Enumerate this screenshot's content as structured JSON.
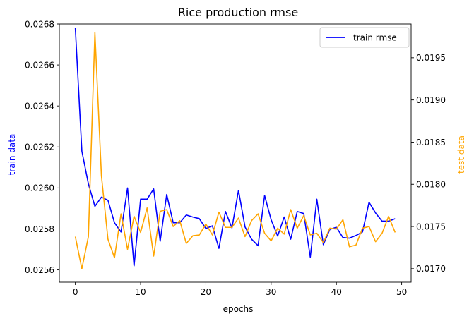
{
  "chart_data": {
    "type": "line",
    "title": "Rice production rmse",
    "xlabel": "epochs",
    "ylabel_left": "train data",
    "ylabel_right": "test data",
    "xlim": [
      -2.45,
      51.45
    ],
    "ylim_left": [
      0.02554,
      0.0268
    ],
    "ylim_right": [
      0.01684,
      0.0199
    ],
    "x_ticks": [
      0,
      10,
      20,
      30,
      40,
      50
    ],
    "y_left_ticks": [
      0.0256,
      0.0258,
      0.026,
      0.0262,
      0.0264,
      0.0266,
      0.0268
    ],
    "y_right_ticks": [
      0.017,
      0.0175,
      0.018,
      0.0185,
      0.019,
      0.0195
    ],
    "grid": false,
    "legend_position": "top-right",
    "colors": {
      "train": "#0000ff",
      "test": "#ffa500",
      "axes": "#000000"
    },
    "x": [
      0,
      1,
      2,
      3,
      4,
      5,
      6,
      7,
      8,
      9,
      10,
      11,
      12,
      13,
      14,
      15,
      16,
      17,
      18,
      19,
      20,
      21,
      22,
      23,
      24,
      25,
      26,
      27,
      28,
      29,
      30,
      31,
      32,
      33,
      34,
      35,
      36,
      37,
      38,
      39,
      40,
      41,
      42,
      43,
      44,
      45,
      46,
      47,
      48,
      49
    ],
    "series": [
      {
        "name": "train rmse",
        "axis": "left",
        "color": "#0000ff",
        "values": [
          0.02678,
          0.02618,
          0.02602,
          0.02591,
          0.025955,
          0.02594,
          0.02583,
          0.025785,
          0.026,
          0.02562,
          0.025945,
          0.025945,
          0.025995,
          0.02574,
          0.025968,
          0.02583,
          0.02583,
          0.025868,
          0.025858,
          0.02585,
          0.025802,
          0.025815,
          0.025705,
          0.025885,
          0.025805,
          0.025988,
          0.02581,
          0.02575,
          0.025718,
          0.025963,
          0.025845,
          0.025765,
          0.025858,
          0.02575,
          0.025885,
          0.025875,
          0.025662,
          0.025945,
          0.025723,
          0.025798,
          0.025808,
          0.025758,
          0.025755,
          0.025768,
          0.025785,
          0.02593,
          0.025878,
          0.025838,
          0.025838,
          0.02585
        ]
      },
      {
        "name": "",
        "axis": "right",
        "color": "#ffa500",
        "values": [
          0.01738,
          0.017,
          0.01738,
          0.0198,
          0.0181,
          0.01735,
          0.01713,
          0.01765,
          0.01723,
          0.01762,
          0.01743,
          0.01772,
          0.01715,
          0.01768,
          0.0177,
          0.0175,
          0.01757,
          0.0173,
          0.01739,
          0.0174,
          0.01753,
          0.0174,
          0.01767,
          0.01749,
          0.01749,
          0.0176,
          0.01738,
          0.01757,
          0.01765,
          0.01742,
          0.01733,
          0.01748,
          0.01741,
          0.0177,
          0.01748,
          0.01763,
          0.0174,
          0.01742,
          0.01731,
          0.01748,
          0.01747,
          0.01758,
          0.01726,
          0.01728,
          0.01748,
          0.0175,
          0.01732,
          0.01742,
          0.01762,
          0.01743
        ]
      }
    ]
  }
}
